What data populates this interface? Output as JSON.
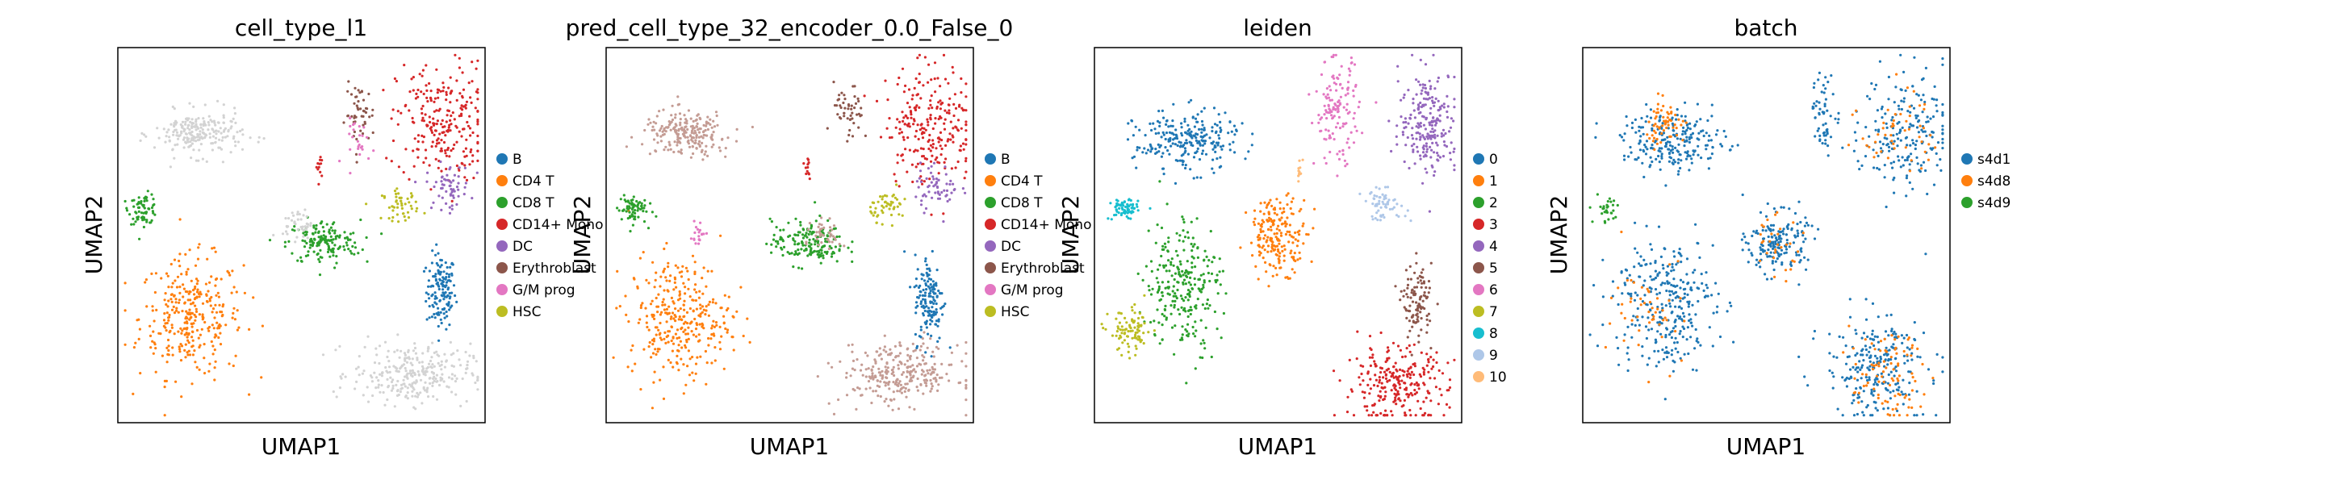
{
  "chart_data": [
    {
      "type": "scatter",
      "title": "cell_type_l1",
      "xlabel": "UMAP1",
      "ylabel": "UMAP2",
      "legend_position": "right",
      "legend": [
        {
          "label": "B",
          "color": "#1f77b4"
        },
        {
          "label": "CD4 T",
          "color": "#ff7f0e"
        },
        {
          "label": "CD8 T",
          "color": "#2ca02c"
        },
        {
          "label": "CD14+ Mono",
          "color": "#d62728"
        },
        {
          "label": "DC",
          "color": "#9467bd"
        },
        {
          "label": "Erythroblast",
          "color": "#8c564b"
        },
        {
          "label": "G/M prog",
          "color": "#e377c2"
        },
        {
          "label": "HSC",
          "color": "#bcbd22"
        }
      ],
      "extra_color": "#d3d3d3",
      "clusters": [
        {
          "label": "B",
          "x": 0.88,
          "y": 0.35,
          "sx": 0.02,
          "sy": 0.05,
          "n": 140
        },
        {
          "label": "CD4 T",
          "x": 0.2,
          "y": 0.28,
          "sx": 0.07,
          "sy": 0.08,
          "n": 320
        },
        {
          "label": "CD8 T",
          "x": 0.07,
          "y": 0.57,
          "sx": 0.02,
          "sy": 0.02,
          "n": 70
        },
        {
          "label": "CD8 T",
          "x": 0.56,
          "y": 0.48,
          "sx": 0.05,
          "sy": 0.03,
          "n": 160
        },
        {
          "label": "CD14+ Mono",
          "x": 0.88,
          "y": 0.8,
          "sx": 0.06,
          "sy": 0.08,
          "n": 240
        },
        {
          "label": "CD14+ Mono",
          "x": 0.55,
          "y": 0.68,
          "sx": 0.005,
          "sy": 0.02,
          "n": 12
        },
        {
          "label": "DC",
          "x": 0.9,
          "y": 0.63,
          "sx": 0.03,
          "sy": 0.03,
          "n": 60
        },
        {
          "label": "Erythroblast",
          "x": 0.66,
          "y": 0.82,
          "sx": 0.02,
          "sy": 0.04,
          "n": 50
        },
        {
          "label": "G/M prog",
          "x": 0.66,
          "y": 0.75,
          "sx": 0.02,
          "sy": 0.03,
          "n": 25
        },
        {
          "label": "HSC",
          "x": 0.77,
          "y": 0.58,
          "sx": 0.025,
          "sy": 0.02,
          "n": 50
        },
        {
          "label": "extra",
          "x": 0.22,
          "y": 0.77,
          "sx": 0.06,
          "sy": 0.03,
          "n": 220
        },
        {
          "label": "extra",
          "x": 0.8,
          "y": 0.13,
          "sx": 0.08,
          "sy": 0.04,
          "n": 280
        },
        {
          "label": "extra",
          "x": 0.49,
          "y": 0.53,
          "sx": 0.02,
          "sy": 0.02,
          "n": 40
        }
      ]
    },
    {
      "type": "scatter",
      "title": "pred_cell_type_32_encoder_0.0_False_0",
      "xlabel": "UMAP1",
      "ylabel": "UMAP2",
      "legend_position": "right",
      "legend": [
        {
          "label": "B",
          "color": "#1f77b4"
        },
        {
          "label": "CD4 T",
          "color": "#ff7f0e"
        },
        {
          "label": "CD8 T",
          "color": "#2ca02c"
        },
        {
          "label": "CD14+ Mono",
          "color": "#d62728"
        },
        {
          "label": "DC",
          "color": "#9467bd"
        },
        {
          "label": "Erythroblast",
          "color": "#8c564b"
        },
        {
          "label": "G/M prog",
          "color": "#e377c2"
        },
        {
          "label": "HSC",
          "color": "#bcbd22"
        }
      ],
      "extra_color": "#c49c94",
      "clusters": [
        {
          "label": "B",
          "x": 0.88,
          "y": 0.33,
          "sx": 0.02,
          "sy": 0.06,
          "n": 150
        },
        {
          "label": "CD4 T",
          "x": 0.2,
          "y": 0.28,
          "sx": 0.07,
          "sy": 0.08,
          "n": 320
        },
        {
          "label": "CD8 T",
          "x": 0.07,
          "y": 0.57,
          "sx": 0.02,
          "sy": 0.02,
          "n": 70
        },
        {
          "label": "CD8 T",
          "x": 0.55,
          "y": 0.48,
          "sx": 0.05,
          "sy": 0.03,
          "n": 170
        },
        {
          "label": "CD14+ Mono",
          "x": 0.88,
          "y": 0.8,
          "sx": 0.06,
          "sy": 0.08,
          "n": 240
        },
        {
          "label": "CD14+ Mono",
          "x": 0.55,
          "y": 0.68,
          "sx": 0.005,
          "sy": 0.02,
          "n": 12
        },
        {
          "label": "DC",
          "x": 0.9,
          "y": 0.63,
          "sx": 0.03,
          "sy": 0.03,
          "n": 60
        },
        {
          "label": "Erythroblast",
          "x": 0.66,
          "y": 0.82,
          "sx": 0.02,
          "sy": 0.04,
          "n": 50
        },
        {
          "label": "G/M prog",
          "x": 0.25,
          "y": 0.5,
          "sx": 0.01,
          "sy": 0.02,
          "n": 20
        },
        {
          "label": "HSC",
          "x": 0.77,
          "y": 0.58,
          "sx": 0.025,
          "sy": 0.02,
          "n": 50
        },
        {
          "label": "extra",
          "x": 0.22,
          "y": 0.77,
          "sx": 0.06,
          "sy": 0.03,
          "n": 220
        },
        {
          "label": "extra",
          "x": 0.8,
          "y": 0.13,
          "sx": 0.08,
          "sy": 0.04,
          "n": 280
        },
        {
          "label": "extra",
          "x": 0.6,
          "y": 0.5,
          "sx": 0.02,
          "sy": 0.02,
          "n": 40
        }
      ]
    },
    {
      "type": "scatter",
      "title": "leiden",
      "xlabel": "UMAP1",
      "ylabel": "UMAP2",
      "legend_position": "right",
      "legend": [
        {
          "label": "0",
          "color": "#1f77b4"
        },
        {
          "label": "1",
          "color": "#ff7f0e"
        },
        {
          "label": "2",
          "color": "#2ca02c"
        },
        {
          "label": "3",
          "color": "#d62728"
        },
        {
          "label": "4",
          "color": "#9467bd"
        },
        {
          "label": "5",
          "color": "#8c564b"
        },
        {
          "label": "6",
          "color": "#e377c2"
        },
        {
          "label": "7",
          "color": "#bcbd22"
        },
        {
          "label": "8",
          "color": "#17becf"
        },
        {
          "label": "9",
          "color": "#aec7e8"
        },
        {
          "label": "10",
          "color": "#ffbb78"
        }
      ],
      "clusters": [
        {
          "label": "0",
          "x": 0.25,
          "y": 0.75,
          "sx": 0.07,
          "sy": 0.04,
          "n": 240
        },
        {
          "label": "1",
          "x": 0.5,
          "y": 0.5,
          "sx": 0.04,
          "sy": 0.05,
          "n": 200
        },
        {
          "label": "2",
          "x": 0.24,
          "y": 0.37,
          "sx": 0.05,
          "sy": 0.09,
          "n": 260
        },
        {
          "label": "3",
          "x": 0.82,
          "y": 0.1,
          "sx": 0.07,
          "sy": 0.05,
          "n": 260
        },
        {
          "label": "4",
          "x": 0.91,
          "y": 0.8,
          "sx": 0.04,
          "sy": 0.07,
          "n": 220
        },
        {
          "label": "5",
          "x": 0.88,
          "y": 0.32,
          "sx": 0.02,
          "sy": 0.05,
          "n": 110
        },
        {
          "label": "6",
          "x": 0.66,
          "y": 0.83,
          "sx": 0.03,
          "sy": 0.07,
          "n": 140
        },
        {
          "label": "7",
          "x": 0.1,
          "y": 0.24,
          "sx": 0.03,
          "sy": 0.03,
          "n": 90
        },
        {
          "label": "8",
          "x": 0.08,
          "y": 0.57,
          "sx": 0.02,
          "sy": 0.015,
          "n": 70
        },
        {
          "label": "9",
          "x": 0.79,
          "y": 0.58,
          "sx": 0.03,
          "sy": 0.02,
          "n": 60
        },
        {
          "label": "10",
          "x": 0.56,
          "y": 0.67,
          "sx": 0.005,
          "sy": 0.02,
          "n": 12
        }
      ]
    },
    {
      "type": "scatter",
      "title": "batch",
      "xlabel": "UMAP1",
      "ylabel": "UMAP2",
      "legend_position": "right",
      "legend": [
        {
          "label": "s4d1",
          "color": "#1f77b4"
        },
        {
          "label": "s4d8",
          "color": "#ff7f0e"
        },
        {
          "label": "s4d9",
          "color": "#2ca02c"
        }
      ],
      "clusters": [
        {
          "label": "s4d1",
          "x": 0.25,
          "y": 0.75,
          "sx": 0.07,
          "sy": 0.04,
          "n": 220
        },
        {
          "label": "s4d8",
          "x": 0.22,
          "y": 0.8,
          "sx": 0.03,
          "sy": 0.03,
          "n": 60
        },
        {
          "label": "s4d1",
          "x": 0.22,
          "y": 0.32,
          "sx": 0.07,
          "sy": 0.09,
          "n": 300
        },
        {
          "label": "s4d8",
          "x": 0.2,
          "y": 0.3,
          "sx": 0.06,
          "sy": 0.07,
          "n": 50
        },
        {
          "label": "s4d1",
          "x": 0.53,
          "y": 0.48,
          "sx": 0.04,
          "sy": 0.04,
          "n": 170
        },
        {
          "label": "s4d8",
          "x": 0.52,
          "y": 0.47,
          "sx": 0.04,
          "sy": 0.04,
          "n": 30
        },
        {
          "label": "s4d1",
          "x": 0.8,
          "y": 0.15,
          "sx": 0.07,
          "sy": 0.07,
          "n": 240
        },
        {
          "label": "s4d8",
          "x": 0.83,
          "y": 0.12,
          "sx": 0.05,
          "sy": 0.06,
          "n": 90
        },
        {
          "label": "s4d1",
          "x": 0.88,
          "y": 0.78,
          "sx": 0.06,
          "sy": 0.08,
          "n": 200
        },
        {
          "label": "s4d8",
          "x": 0.86,
          "y": 0.78,
          "sx": 0.05,
          "sy": 0.06,
          "n": 50
        },
        {
          "label": "s4d1",
          "x": 0.66,
          "y": 0.82,
          "sx": 0.02,
          "sy": 0.05,
          "n": 60
        },
        {
          "label": "s4d9",
          "x": 0.07,
          "y": 0.57,
          "sx": 0.02,
          "sy": 0.02,
          "n": 30
        }
      ]
    }
  ]
}
